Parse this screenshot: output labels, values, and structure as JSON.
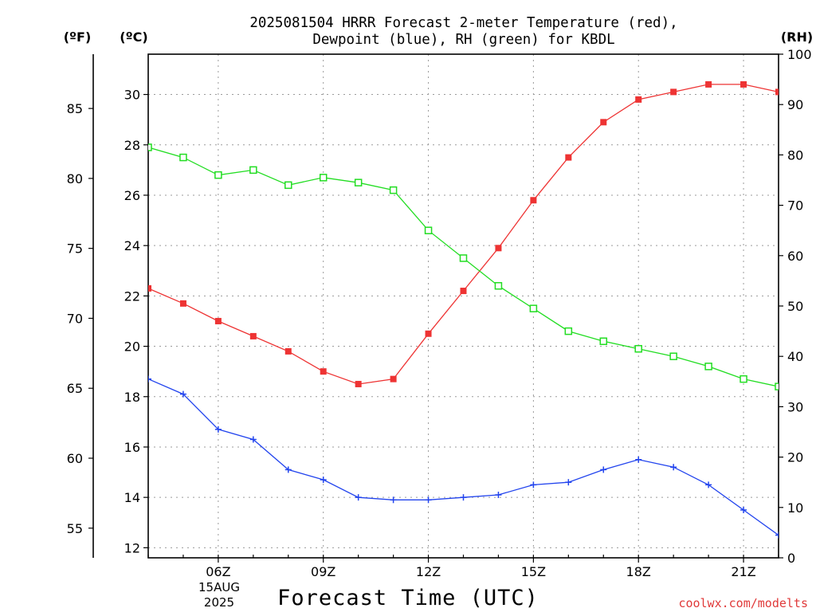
{
  "chart_data": {
    "type": "line",
    "title_line1": "2025081504 HRRR Forecast 2-meter Temperature (red),",
    "title_line2": "Dewpoint (blue), RH (green) for KBDL",
    "xlabel": "Forecast Time (UTC)",
    "unit_f": "(ºF)",
    "unit_c": "(ºC)",
    "unit_rh": "(RH)",
    "date_day": "15AUG",
    "date_year": "2025",
    "credit": "coolwx.com/modelts",
    "x_hours": [
      4,
      5,
      6,
      7,
      8,
      9,
      10,
      11,
      12,
      13,
      14,
      15,
      16,
      17,
      18,
      19,
      20,
      21,
      22
    ],
    "x_ticks": [
      {
        "hour": 6,
        "label": "06Z"
      },
      {
        "hour": 9,
        "label": "09Z"
      },
      {
        "hour": 12,
        "label": "12Z"
      },
      {
        "hour": 15,
        "label": "15Z"
      },
      {
        "hour": 18,
        "label": "18Z"
      },
      {
        "hour": 21,
        "label": "21Z"
      }
    ],
    "xlim": [
      4,
      22
    ],
    "ylim_c": [
      11.6,
      31.6
    ],
    "ylim_rh": [
      0,
      100
    ],
    "yticks_c": [
      12,
      14,
      16,
      18,
      20,
      22,
      24,
      26,
      28,
      30
    ],
    "yticks_f": [
      55,
      60,
      65,
      70,
      75,
      80,
      85
    ],
    "yticks_rh": [
      0,
      10,
      20,
      30,
      40,
      50,
      60,
      70,
      80,
      90,
      100
    ],
    "series": [
      {
        "name": "Temperature",
        "axis": "c",
        "color": "#ee3333",
        "marker": "filled-square",
        "values": [
          22.3,
          21.7,
          21.0,
          20.4,
          19.8,
          19.0,
          18.5,
          18.7,
          20.5,
          22.2,
          23.9,
          25.8,
          27.5,
          28.9,
          29.8,
          30.1,
          30.4,
          30.4,
          30.1
        ]
      },
      {
        "name": "Dewpoint",
        "axis": "c",
        "color": "#2244ee",
        "marker": "plus",
        "values": [
          18.7,
          18.1,
          16.7,
          16.3,
          15.1,
          14.7,
          14.0,
          13.9,
          13.9,
          14.0,
          14.1,
          14.5,
          14.6,
          15.1,
          15.5,
          15.2,
          14.5,
          13.5,
          12.5
        ]
      },
      {
        "name": "RH",
        "axis": "rh",
        "color": "#22dd22",
        "marker": "open-square",
        "values": [
          81.5,
          79.5,
          76.0,
          77.0,
          74.0,
          75.5,
          74.5,
          73.0,
          65.0,
          59.5,
          54.0,
          49.5,
          45.0,
          43.0,
          41.5,
          40.0,
          38.0,
          35.5,
          34.0
        ]
      }
    ]
  }
}
